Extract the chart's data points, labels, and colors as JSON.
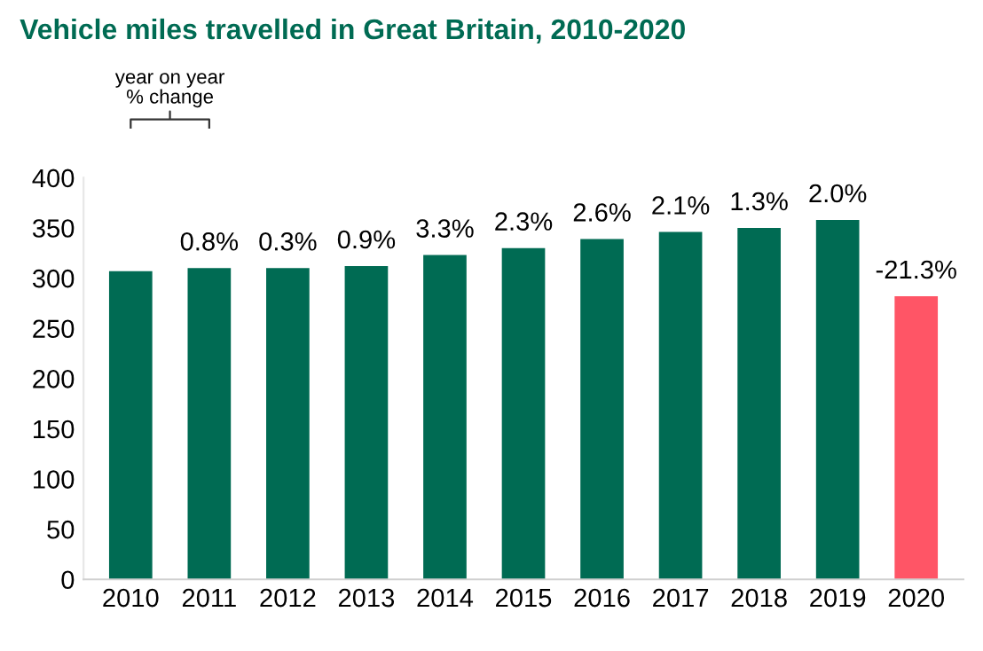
{
  "chart_data": {
    "type": "bar",
    "title": "Vehicle miles travelled in Great Britain, 2010-2020",
    "categories": [
      "2010",
      "2011",
      "2012",
      "2013",
      "2014",
      "2015",
      "2016",
      "2017",
      "2018",
      "2019",
      "2020"
    ],
    "values": [
      307,
      310,
      310,
      312,
      323,
      330,
      339,
      346,
      350,
      358,
      282
    ],
    "colors": [
      "#006b53",
      "#006b53",
      "#006b53",
      "#006b53",
      "#006b53",
      "#006b53",
      "#006b53",
      "#006b53",
      "#006b53",
      "#006b53",
      "#ff5566"
    ],
    "annotations": [
      "year on year\n% change",
      {
        "text": "0.8%",
        "x": "2011",
        "y": 310
      },
      {
        "text": "0.3%",
        "x": "2012",
        "y": 310
      },
      {
        "text": "0.9%",
        "x": "2013",
        "y": 312
      },
      {
        "text": "3.3%",
        "x": "2014",
        "y": 323
      },
      {
        "text": "2.3%",
        "x": "2015",
        "y": 330
      },
      {
        "text": "2.6%",
        "x": "2016",
        "y": 339
      },
      {
        "text": "2.1%",
        "x": "2017",
        "y": 346
      },
      {
        "text": "1.3%",
        "x": "2018",
        "y": 350
      },
      {
        "text": "2.0%",
        "x": "2019",
        "y": 358
      },
      {
        "text": "-21.3%",
        "x": "2020",
        "y": 282
      }
    ],
    "ylim": [
      0,
      400
    ],
    "yticks": [
      0,
      50,
      100,
      150,
      200,
      250,
      300,
      350,
      400
    ],
    "grid": false,
    "legend": false
  }
}
